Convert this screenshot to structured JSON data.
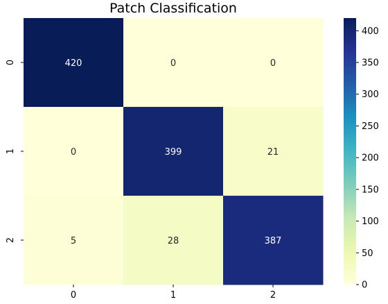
{
  "chart_data": {
    "type": "heatmap",
    "title": "Patch Classification",
    "xlabel": "",
    "ylabel": "",
    "x_categories": [
      "0",
      "1",
      "2"
    ],
    "y_categories": [
      "0",
      "1",
      "2"
    ],
    "values": [
      [
        420,
        0,
        0
      ],
      [
        0,
        399,
        21
      ],
      [
        5,
        28,
        387
      ]
    ],
    "colorbar": {
      "min": 0,
      "max": 420,
      "ticks": [
        0,
        50,
        100,
        150,
        200,
        250,
        300,
        350,
        400
      ],
      "colormap": "YlGnBu"
    },
    "colormap_stops": [
      "#ffffd9",
      "#edf8b1",
      "#c7e9b4",
      "#7fcdbb",
      "#41b6c4",
      "#1d91c0",
      "#225ea8",
      "#253494",
      "#081d58"
    ]
  }
}
